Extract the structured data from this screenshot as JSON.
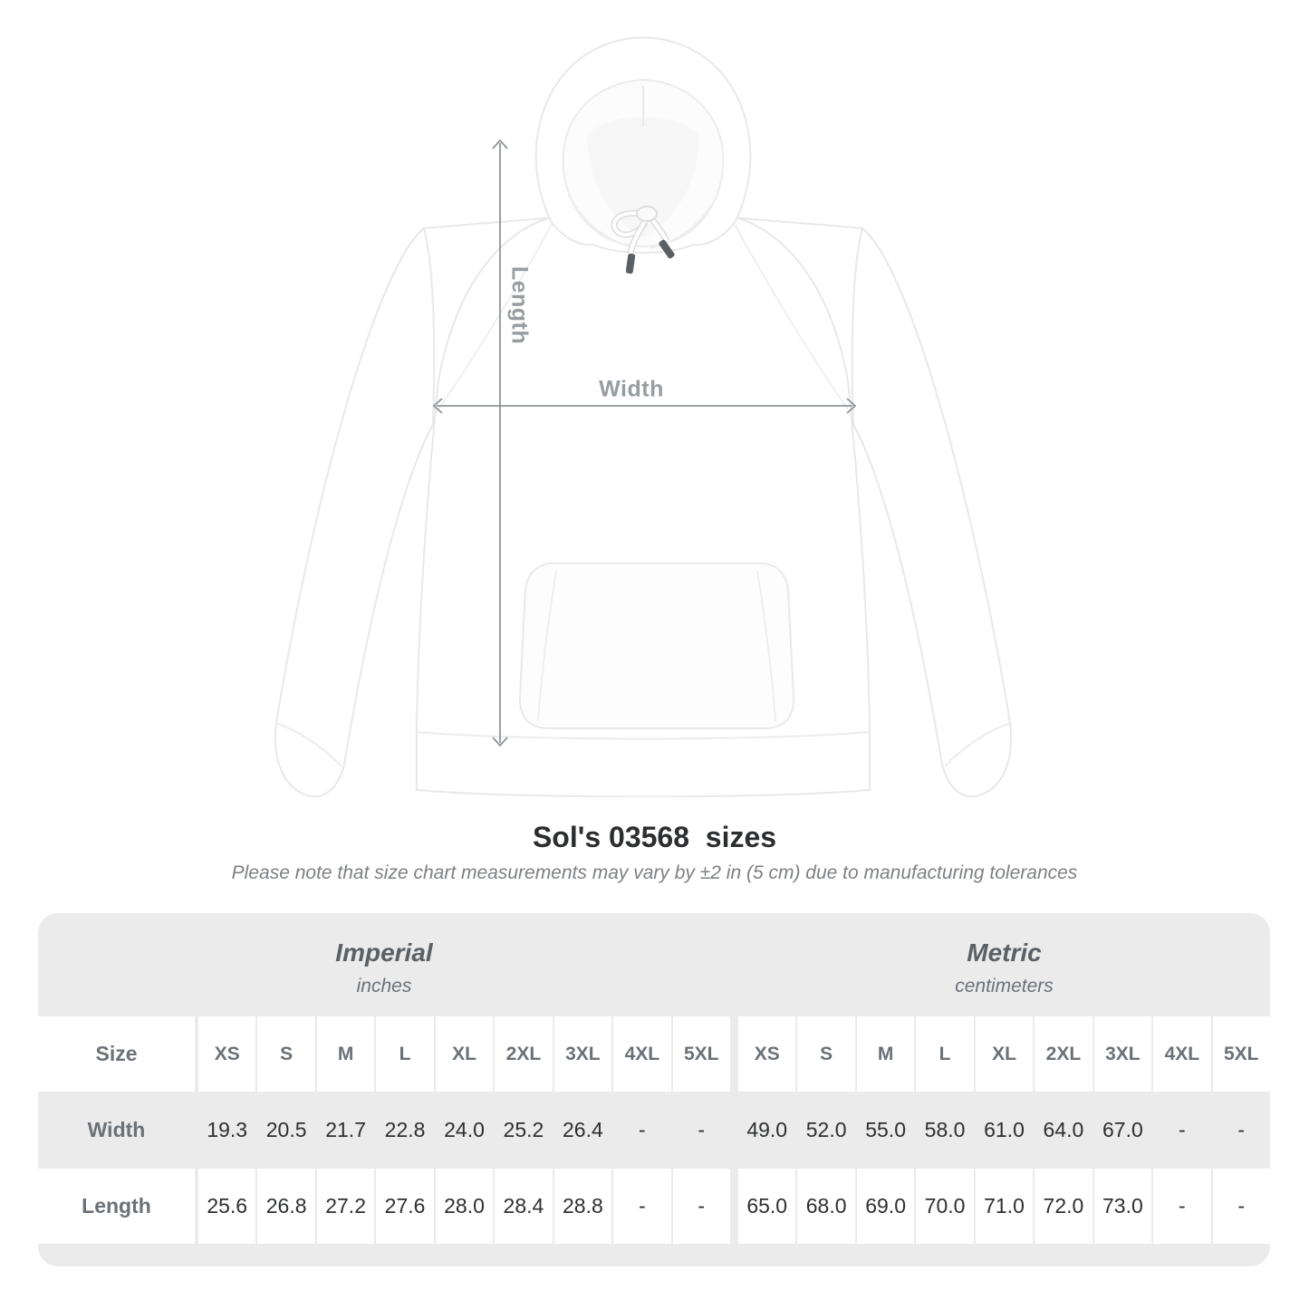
{
  "diagram": {
    "length_label": "Length",
    "width_label": "Width",
    "arrow_color": "#8f9499",
    "label_color": "#989da2"
  },
  "title": "Sol's 03568  sizes",
  "subtitle": "Please note that size chart measurements may vary by ±2 in (5 cm) due to manufacturing tolerances",
  "size_chart": {
    "section_headers": [
      {
        "name": "Imperial",
        "unit": "inches"
      },
      {
        "name": "Metric",
        "unit": "centimeters"
      }
    ],
    "corner_label": "Size",
    "sizes": [
      "XS",
      "S",
      "M",
      "L",
      "XL",
      "2XL",
      "3XL",
      "4XL",
      "5XL"
    ],
    "rows": [
      {
        "label": "Width",
        "imperial": [
          "19.3",
          "20.5",
          "21.7",
          "22.8",
          "24.0",
          "25.2",
          "26.4",
          "-",
          "-"
        ],
        "metric": [
          "49.0",
          "52.0",
          "55.0",
          "58.0",
          "61.0",
          "64.0",
          "67.0",
          "-",
          "-"
        ]
      },
      {
        "label": "Length",
        "imperial": [
          "25.6",
          "26.8",
          "27.2",
          "27.6",
          "28.0",
          "28.4",
          "28.8",
          "-",
          "-"
        ],
        "metric": [
          "65.0",
          "68.0",
          "69.0",
          "70.0",
          "71.0",
          "72.0",
          "73.0",
          "-",
          "-"
        ]
      }
    ],
    "colors": {
      "table_bg": "#ebebeb",
      "cell_bg": "#ffffff",
      "section_header_text": "#596066",
      "label_text": "#6b7177",
      "value_text": "#2d2f31"
    }
  },
  "chart_data": {
    "type": "table",
    "title": "Sol's 03568  sizes",
    "note": "Please note that size chart measurements may vary by ±2 in (5 cm) due to manufacturing tolerances",
    "sections": [
      "Imperial (inches)",
      "Metric (centimeters)"
    ],
    "columns": [
      "XS",
      "S",
      "M",
      "L",
      "XL",
      "2XL",
      "3XL",
      "4XL",
      "5XL"
    ],
    "rows": [
      {
        "label": "Width",
        "imperial_inches": [
          19.3,
          20.5,
          21.7,
          22.8,
          24.0,
          25.2,
          26.4,
          null,
          null
        ],
        "metric_centimeters": [
          49.0,
          52.0,
          55.0,
          58.0,
          61.0,
          64.0,
          67.0,
          null,
          null
        ]
      },
      {
        "label": "Length",
        "imperial_inches": [
          25.6,
          26.8,
          27.2,
          27.6,
          28.0,
          28.4,
          28.8,
          null,
          null
        ],
        "metric_centimeters": [
          65.0,
          68.0,
          69.0,
          70.0,
          71.0,
          72.0,
          73.0,
          null,
          null
        ]
      }
    ]
  }
}
